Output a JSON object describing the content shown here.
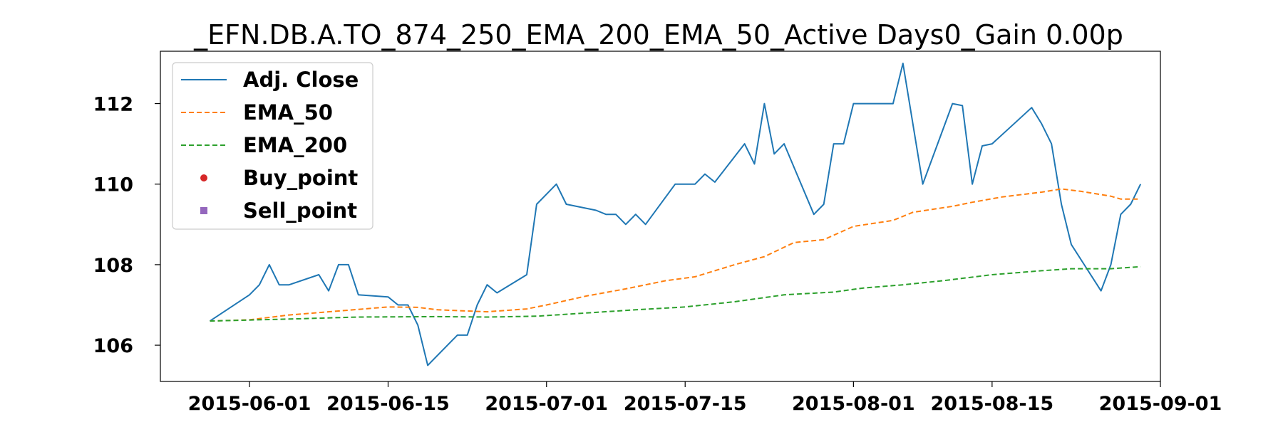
{
  "chart_data": {
    "type": "line",
    "title": "_EFN.DB.A.TO_874_250_EMA_200_EMA_50_Active Days0_Gain   0.00p",
    "xlabel": "",
    "ylabel": "",
    "xlim": [
      "2015-05-23",
      "2015-09-01"
    ],
    "ylim": [
      105.1,
      113.3
    ],
    "x_ticks": [
      "2015-06-01",
      "2015-06-15",
      "2015-07-01",
      "2015-07-15",
      "2015-08-01",
      "2015-08-15",
      "2015-09-01"
    ],
    "y_ticks": [
      106,
      108,
      110,
      112
    ],
    "grid": false,
    "legend_position": "top-left",
    "series": [
      {
        "name": "Adj. Close",
        "style": "solid",
        "color": "#1f77b4",
        "points": [
          [
            "2015-05-28",
            106.6
          ],
          [
            "2015-06-01",
            107.25
          ],
          [
            "2015-06-02",
            107.5
          ],
          [
            "2015-06-03",
            108.0
          ],
          [
            "2015-06-04",
            107.5
          ],
          [
            "2015-06-05",
            107.5
          ],
          [
            "2015-06-08",
            107.75
          ],
          [
            "2015-06-09",
            107.35
          ],
          [
            "2015-06-10",
            108.0
          ],
          [
            "2015-06-11",
            108.0
          ],
          [
            "2015-06-12",
            107.25
          ],
          [
            "2015-06-15",
            107.2
          ],
          [
            "2015-06-16",
            107.0
          ],
          [
            "2015-06-17",
            107.0
          ],
          [
            "2015-06-18",
            106.5
          ],
          [
            "2015-06-19",
            105.5
          ],
          [
            "2015-06-22",
            106.25
          ],
          [
            "2015-06-23",
            106.25
          ],
          [
            "2015-06-24",
            107.0
          ],
          [
            "2015-06-25",
            107.5
          ],
          [
            "2015-06-26",
            107.3
          ],
          [
            "2015-06-29",
            107.75
          ],
          [
            "2015-06-30",
            109.5
          ],
          [
            "2015-07-02",
            110.0
          ],
          [
            "2015-07-03",
            109.5
          ],
          [
            "2015-07-06",
            109.35
          ],
          [
            "2015-07-07",
            109.25
          ],
          [
            "2015-07-08",
            109.25
          ],
          [
            "2015-07-09",
            109.0
          ],
          [
            "2015-07-10",
            109.25
          ],
          [
            "2015-07-11",
            109.0
          ],
          [
            "2015-07-14",
            110.0
          ],
          [
            "2015-07-16",
            110.0
          ],
          [
            "2015-07-17",
            110.25
          ],
          [
            "2015-07-18",
            110.05
          ],
          [
            "2015-07-21",
            111.0
          ],
          [
            "2015-07-22",
            110.5
          ],
          [
            "2015-07-23",
            112.0
          ],
          [
            "2015-07-24",
            110.75
          ],
          [
            "2015-07-25",
            111.0
          ],
          [
            "2015-07-28",
            109.25
          ],
          [
            "2015-07-29",
            109.5
          ],
          [
            "2015-07-30",
            111.0
          ],
          [
            "2015-07-31",
            111.0
          ],
          [
            "2015-08-01",
            112.0
          ],
          [
            "2015-08-05",
            112.0
          ],
          [
            "2015-08-06",
            113.0
          ],
          [
            "2015-08-08",
            110.0
          ],
          [
            "2015-08-11",
            112.0
          ],
          [
            "2015-08-12",
            111.95
          ],
          [
            "2015-08-13",
            110.0
          ],
          [
            "2015-08-14",
            110.95
          ],
          [
            "2015-08-15",
            111.0
          ],
          [
            "2015-08-19",
            111.9
          ],
          [
            "2015-08-20",
            111.5
          ],
          [
            "2015-08-21",
            111.0
          ],
          [
            "2015-08-22",
            109.5
          ],
          [
            "2015-08-23",
            108.5
          ],
          [
            "2015-08-26",
            107.35
          ],
          [
            "2015-08-27",
            108.0
          ],
          [
            "2015-08-28",
            109.25
          ],
          [
            "2015-08-29",
            109.5
          ],
          [
            "2015-08-30",
            110.0
          ]
        ]
      },
      {
        "name": "EMA_50",
        "style": "dashed",
        "color": "#ff7f0e",
        "points": [
          [
            "2015-05-28",
            106.6
          ],
          [
            "2015-06-01",
            106.63
          ],
          [
            "2015-06-05",
            106.75
          ],
          [
            "2015-06-10",
            106.85
          ],
          [
            "2015-06-15",
            106.95
          ],
          [
            "2015-06-18",
            106.94
          ],
          [
            "2015-06-20",
            106.88
          ],
          [
            "2015-06-25",
            106.83
          ],
          [
            "2015-06-29",
            106.9
          ],
          [
            "2015-07-01",
            107.0
          ],
          [
            "2015-07-05",
            107.22
          ],
          [
            "2015-07-09",
            107.4
          ],
          [
            "2015-07-13",
            107.6
          ],
          [
            "2015-07-16",
            107.7
          ],
          [
            "2015-07-20",
            108.0
          ],
          [
            "2015-07-23",
            108.2
          ],
          [
            "2015-07-26",
            108.55
          ],
          [
            "2015-07-29",
            108.62
          ],
          [
            "2015-08-01",
            108.95
          ],
          [
            "2015-08-05",
            109.1
          ],
          [
            "2015-08-07",
            109.3
          ],
          [
            "2015-08-11",
            109.45
          ],
          [
            "2015-08-13",
            109.55
          ],
          [
            "2015-08-16",
            109.68
          ],
          [
            "2015-08-20",
            109.8
          ],
          [
            "2015-08-22",
            109.88
          ],
          [
            "2015-08-24",
            109.82
          ],
          [
            "2015-08-27",
            109.7
          ],
          [
            "2015-08-28",
            109.63
          ],
          [
            "2015-08-30",
            109.63
          ]
        ]
      },
      {
        "name": "EMA_200",
        "style": "dashed",
        "color": "#2ca02c",
        "points": [
          [
            "2015-05-28",
            106.6
          ],
          [
            "2015-06-05",
            106.65
          ],
          [
            "2015-06-12",
            106.7
          ],
          [
            "2015-06-20",
            106.71
          ],
          [
            "2015-06-25",
            106.7
          ],
          [
            "2015-06-30",
            106.72
          ],
          [
            "2015-07-05",
            106.8
          ],
          [
            "2015-07-10",
            106.88
          ],
          [
            "2015-07-15",
            106.95
          ],
          [
            "2015-07-20",
            107.08
          ],
          [
            "2015-07-25",
            107.25
          ],
          [
            "2015-07-30",
            107.32
          ],
          [
            "2015-08-02",
            107.42
          ],
          [
            "2015-08-06",
            107.5
          ],
          [
            "2015-08-10",
            107.6
          ],
          [
            "2015-08-15",
            107.75
          ],
          [
            "2015-08-20",
            107.85
          ],
          [
            "2015-08-23",
            107.9
          ],
          [
            "2015-08-27",
            107.9
          ],
          [
            "2015-08-30",
            107.95
          ]
        ]
      }
    ],
    "legend": [
      {
        "label": "Adj. Close",
        "marker": "solid-line",
        "color": "#1f77b4"
      },
      {
        "label": "EMA_50",
        "marker": "dashed-line",
        "color": "#ff7f0e"
      },
      {
        "label": "EMA_200",
        "marker": "dashed-line",
        "color": "#2ca02c"
      },
      {
        "label": "Buy_point",
        "marker": "circle",
        "color": "#d62728"
      },
      {
        "label": "Sell_point",
        "marker": "square",
        "color": "#9467bd"
      }
    ]
  }
}
